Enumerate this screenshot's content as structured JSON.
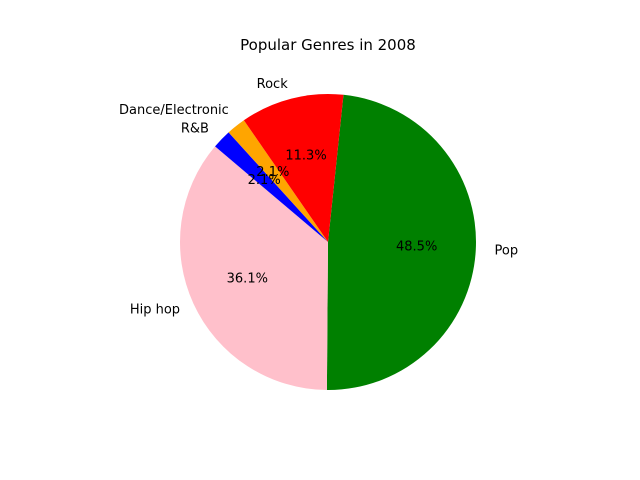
{
  "chart_data": {
    "type": "pie",
    "title": "Popular Genres in 2008",
    "labels": [
      "Pop",
      "Hip hop",
      "R&B",
      "Dance/Electronic",
      "Rock"
    ],
    "values": [
      48.5,
      36.1,
      2.1,
      2.1,
      11.3
    ],
    "value_labels": [
      "48.5%",
      "36.1%",
      "2.1%",
      "2.1%",
      "11.3%"
    ],
    "colors": [
      "#008000",
      "#ffc0cb",
      "#0000ff",
      "#ffa500",
      "#ff0000"
    ],
    "legend": "none"
  }
}
